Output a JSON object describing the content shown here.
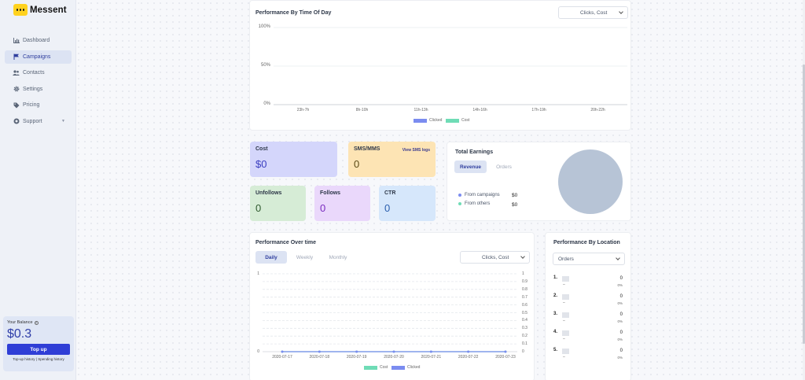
{
  "app": {
    "name": "Messent"
  },
  "sidebar": {
    "items": [
      {
        "label": "Dashboard",
        "icon": "chart-icon"
      },
      {
        "label": "Campaigns",
        "icon": "flag-icon"
      },
      {
        "label": "Contacts",
        "icon": "users-icon"
      },
      {
        "label": "Settings",
        "icon": "gear-icon"
      },
      {
        "label": "Pricing",
        "icon": "tag-icon"
      },
      {
        "label": "Support",
        "icon": "lifebuoy-icon"
      }
    ],
    "active": "Campaigns"
  },
  "balance": {
    "label": "Your Balance",
    "value": "$0.3",
    "topup_label": "Top up",
    "topup_history": "Top-up history",
    "separator": "|",
    "spending_history": "Spending history"
  },
  "time_of_day": {
    "title": "Performance By Time Of Day",
    "select_value": "Clicks, Cost",
    "chart_data": {
      "type": "bar",
      "title": "Performance By Time Of Day",
      "categories": [
        "23h-7h",
        "8h-10h",
        "11h-13h",
        "14h-16h",
        "17h-19h",
        "20h-22h"
      ],
      "series": [
        {
          "name": "Clicked",
          "values": [
            0,
            0,
            0,
            0,
            0,
            0
          ],
          "color": "#7b8cf0"
        },
        {
          "name": "Cost",
          "values": [
            0,
            0,
            0,
            0,
            0,
            0
          ],
          "color": "#6fdcb6"
        }
      ],
      "y_ticks": [
        "100%",
        "50%",
        "0%"
      ],
      "ylim": [
        0,
        100
      ],
      "legend": "bottom"
    }
  },
  "stats": {
    "cost": {
      "label": "Cost",
      "value": "$0",
      "color": "#d4d6fb"
    },
    "sms": {
      "label": "SMS/MMS",
      "value": "0",
      "link": "View SMS logs",
      "color": "#fde4b4"
    },
    "unfollows": {
      "label": "Unfollows",
      "value": "0",
      "color": "#d6ecd6"
    },
    "follows": {
      "label": "Follows",
      "value": "0",
      "color": "#ead8fb"
    },
    "ctr": {
      "label": "CTR",
      "value": "0",
      "color": "#d6e7fb"
    }
  },
  "earnings": {
    "title": "Total Earnings",
    "tabs": [
      "Revenue",
      "Orders"
    ],
    "active_tab": "Revenue",
    "rows": [
      {
        "label": "From campaigns",
        "value": "$0",
        "color": "#7b8cf0"
      },
      {
        "label": "From others",
        "value": "$0",
        "color": "#6fdcb6"
      }
    ],
    "pie_color": "#b7c4d6"
  },
  "over_time": {
    "title": "Performance Over time",
    "tabs": [
      "Daily",
      "Weekly",
      "Monthly"
    ],
    "active_tab": "Daily",
    "select_value": "Clicks, Cost",
    "chart_data": {
      "type": "line",
      "title": "Performance Over time",
      "x": [
        "2020-07-17",
        "2020-07-18",
        "2020-07-19",
        "2020-07-20",
        "2020-07-21",
        "2020-07-22",
        "2020-07-23"
      ],
      "series": [
        {
          "name": "Cost",
          "values": [
            0,
            0,
            0,
            0,
            0,
            0,
            0
          ],
          "color": "#6fdcb6"
        },
        {
          "name": "Clicked",
          "values": [
            0,
            0,
            0,
            0,
            0,
            0,
            0
          ],
          "color": "#7b8cf0"
        }
      ],
      "y_left_ticks": [
        "1",
        "0"
      ],
      "y_right_ticks": [
        "1",
        "0.9",
        "0.8",
        "0.7",
        "0.6",
        "0.5",
        "0.4",
        "0.3",
        "0.2",
        "0.1",
        "0"
      ],
      "ylim": [
        0,
        1
      ],
      "legend": "bottom"
    }
  },
  "location": {
    "title": "Performance By Location",
    "select_value": "Orders",
    "items": [
      {
        "rank": "1.",
        "name": "–",
        "value": "0",
        "pct": "0%"
      },
      {
        "rank": "2.",
        "name": "–",
        "value": "0",
        "pct": "0%"
      },
      {
        "rank": "3.",
        "name": "–",
        "value": "0",
        "pct": "0%"
      },
      {
        "rank": "4.",
        "name": "–",
        "value": "0",
        "pct": "0%"
      },
      {
        "rank": "5.",
        "name": "–",
        "value": "0",
        "pct": "0%"
      }
    ]
  }
}
